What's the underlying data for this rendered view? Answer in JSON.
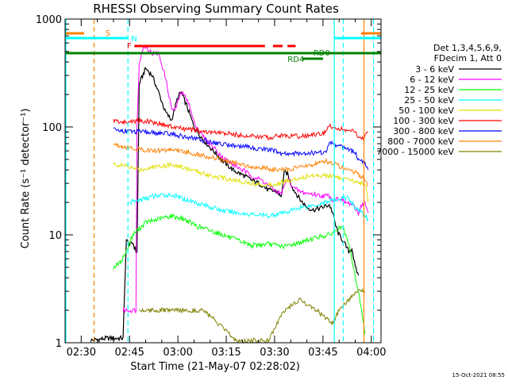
{
  "chart_data": {
    "type": "line",
    "title": "RHESSI Observing Summary Count Rates",
    "xlabel": "Start Time (21-May-07 02:28:02)",
    "ylabel": "Count Rate (s⁻¹ detector⁻¹)",
    "y_scale": "log",
    "ylim": [
      1,
      1000
    ],
    "xlim_minutes": [
      -3,
      95
    ],
    "x_ticks": [
      "02:30",
      "02:45",
      "03:00",
      "03:15",
      "03:30",
      "03:45",
      "04:00"
    ],
    "y_ticks": [
      "1",
      "10",
      "100",
      "1000"
    ],
    "legend": {
      "placement": "right",
      "header": [
        "Det 1,3,4,5,6,9,",
        "FDecim 1, Att 0"
      ],
      "entries": [
        {
          "label": "3 - 6 keV",
          "color": "#000000"
        },
        {
          "label": "6 - 12 keV",
          "color": "#ff00ff"
        },
        {
          "label": "12 - 25 keV",
          "color": "#00ff00"
        },
        {
          "label": "25 - 50 keV",
          "color": "#00ffff"
        },
        {
          "label": "50 - 100 keV",
          "color": "#e0e000"
        },
        {
          "label": "100 - 300 keV",
          "color": "#ff0000"
        },
        {
          "label": "300 - 800 keV",
          "color": "#0000ff"
        },
        {
          "label": "800 - 7000 keV",
          "color": "#ff8000"
        },
        {
          "label": "7000 - 15000 keV",
          "color": "#808000"
        }
      ]
    },
    "flags": [
      {
        "label": "S",
        "color": "#ff8000"
      },
      {
        "label": "N",
        "color": "#00ffff"
      },
      {
        "label": "F",
        "color": "#ff0000"
      },
      {
        "label": "RD4",
        "color": "#008000"
      },
      {
        "label": "RD0",
        "color": "#008000"
      }
    ],
    "series": [
      {
        "name": "3 - 6 keV",
        "points": [
          [
            5,
            1.05
          ],
          [
            10,
            1.1
          ],
          [
            12,
            1.1
          ],
          [
            15,
            1.1
          ],
          [
            16,
            9
          ],
          [
            17,
            8
          ],
          [
            18,
            8.5
          ],
          [
            19,
            7
          ],
          [
            19.3,
            7
          ],
          [
            20,
            250
          ],
          [
            22,
            350
          ],
          [
            24,
            300
          ],
          [
            26,
            210
          ],
          [
            28,
            140
          ],
          [
            30,
            115
          ],
          [
            32,
            190
          ],
          [
            33,
            210
          ],
          [
            35,
            150
          ],
          [
            37,
            100
          ],
          [
            40,
            75
          ],
          [
            43,
            60
          ],
          [
            46,
            48
          ],
          [
            49,
            40
          ],
          [
            52,
            36
          ],
          [
            55,
            32
          ],
          [
            58,
            29
          ],
          [
            60,
            26
          ],
          [
            63,
            25
          ],
          [
            64,
            22
          ],
          [
            65,
            38
          ],
          [
            66,
            37
          ],
          [
            67,
            30
          ],
          [
            68,
            26
          ],
          [
            70,
            21
          ],
          [
            72,
            18
          ],
          [
            74,
            17
          ],
          [
            77,
            18
          ],
          [
            79,
            19
          ],
          [
            80,
            16
          ],
          [
            81,
            12
          ],
          [
            82,
            10
          ],
          [
            83,
            9
          ],
          [
            84,
            8
          ],
          [
            85,
            7
          ],
          [
            86,
            7.5
          ],
          [
            87,
            5
          ],
          [
            88,
            4.2
          ]
        ]
      },
      {
        "name": "6 - 12 keV",
        "points": [
          [
            15,
            2
          ],
          [
            18,
            2
          ],
          [
            19,
            2
          ],
          [
            19.3,
            100
          ],
          [
            20,
            400
          ],
          [
            21,
            520
          ],
          [
            22,
            560
          ],
          [
            24,
            480
          ],
          [
            26,
            480
          ],
          [
            28,
            300
          ],
          [
            30,
            150
          ],
          [
            31,
            140
          ],
          [
            33,
            210
          ],
          [
            35,
            180
          ],
          [
            37,
            110
          ],
          [
            40,
            80
          ],
          [
            43,
            65
          ],
          [
            46,
            52
          ],
          [
            49,
            45
          ],
          [
            52,
            40
          ],
          [
            55,
            35
          ],
          [
            58,
            32
          ],
          [
            60,
            29
          ],
          [
            62,
            26
          ],
          [
            64,
            24
          ],
          [
            65,
            28
          ],
          [
            66,
            33
          ],
          [
            67,
            30
          ],
          [
            68,
            27
          ],
          [
            70,
            25
          ],
          [
            73,
            24
          ],
          [
            77,
            23
          ],
          [
            79,
            23
          ],
          [
            80,
            21
          ],
          [
            82,
            22
          ],
          [
            84,
            20
          ],
          [
            86,
            19
          ],
          [
            88,
            16
          ],
          [
            89,
            19
          ],
          [
            90,
            20
          ],
          [
            91,
            16
          ]
        ]
      },
      {
        "name": "12 - 25 keV",
        "points": [
          [
            12,
            5
          ],
          [
            14,
            5.5
          ],
          [
            16,
            7
          ],
          [
            18,
            10
          ],
          [
            22,
            13
          ],
          [
            26,
            14
          ],
          [
            30,
            15
          ],
          [
            34,
            14
          ],
          [
            38,
            12
          ],
          [
            42,
            11
          ],
          [
            46,
            10
          ],
          [
            50,
            9
          ],
          [
            55,
            8
          ],
          [
            60,
            8.2
          ],
          [
            65,
            7.8
          ],
          [
            70,
            8.5
          ],
          [
            75,
            9.5
          ],
          [
            79,
            10
          ],
          [
            81,
            11
          ],
          [
            83,
            12
          ],
          [
            85,
            8
          ],
          [
            86,
            6
          ],
          [
            87,
            4
          ],
          [
            88,
            3
          ],
          [
            89,
            2
          ],
          [
            90,
            1.2
          ]
        ]
      },
      {
        "name": "25 - 50 keV",
        "points": [
          [
            17,
            20
          ],
          [
            20,
            21
          ],
          [
            25,
            23
          ],
          [
            30,
            23.5
          ],
          [
            35,
            21
          ],
          [
            40,
            19
          ],
          [
            45,
            17
          ],
          [
            50,
            16
          ],
          [
            55,
            15.5
          ],
          [
            60,
            15
          ],
          [
            65,
            16
          ],
          [
            70,
            18
          ],
          [
            75,
            19
          ],
          [
            80,
            21
          ],
          [
            85,
            22
          ],
          [
            87,
            18
          ],
          [
            89,
            16
          ],
          [
            91,
            14
          ]
        ]
      },
      {
        "name": "50 - 100 keV",
        "points": [
          [
            12,
            45
          ],
          [
            15,
            44
          ],
          [
            20,
            40
          ],
          [
            25,
            43
          ],
          [
            30,
            45
          ],
          [
            35,
            41
          ],
          [
            40,
            37
          ],
          [
            45,
            34
          ],
          [
            50,
            32
          ],
          [
            55,
            30
          ],
          [
            60,
            29
          ],
          [
            65,
            31
          ],
          [
            70,
            34
          ],
          [
            75,
            36
          ],
          [
            80,
            35
          ],
          [
            85,
            32
          ],
          [
            88,
            31
          ],
          [
            90,
            30
          ],
          [
            91,
            20
          ]
        ]
      },
      {
        "name": "100 - 300 keV",
        "points": [
          [
            12,
            115
          ],
          [
            15,
            110
          ],
          [
            20,
            115
          ],
          [
            25,
            110
          ],
          [
            30,
            100
          ],
          [
            35,
            95
          ],
          [
            40,
            90
          ],
          [
            45,
            88
          ],
          [
            50,
            85
          ],
          [
            55,
            82
          ],
          [
            60,
            80
          ],
          [
            62,
            80
          ],
          [
            63,
            85
          ],
          [
            64,
            83
          ],
          [
            70,
            82
          ],
          [
            75,
            85
          ],
          [
            78,
            88
          ],
          [
            79,
            105
          ],
          [
            80,
            100
          ],
          [
            83,
            95
          ],
          [
            87,
            90
          ],
          [
            88,
            78
          ],
          [
            90,
            80
          ],
          [
            91,
            90
          ]
        ]
      },
      {
        "name": "300 - 800 keV",
        "points": [
          [
            12,
            95
          ],
          [
            15,
            92
          ],
          [
            20,
            90
          ],
          [
            25,
            88
          ],
          [
            30,
            86
          ],
          [
            35,
            80
          ],
          [
            40,
            75
          ],
          [
            45,
            70
          ],
          [
            50,
            67
          ],
          [
            55,
            64
          ],
          [
            60,
            62
          ],
          [
            62,
            60
          ],
          [
            63,
            58
          ],
          [
            64,
            56
          ],
          [
            70,
            57
          ],
          [
            75,
            58
          ],
          [
            78,
            58
          ],
          [
            79,
            72
          ],
          [
            80,
            70
          ],
          [
            83,
            65
          ],
          [
            87,
            58
          ],
          [
            88,
            50
          ],
          [
            90,
            46
          ],
          [
            91,
            40
          ]
        ]
      },
      {
        "name": "800 - 7000 keV",
        "points": [
          [
            12,
            70
          ],
          [
            15,
            66
          ],
          [
            20,
            62
          ],
          [
            25,
            60
          ],
          [
            30,
            62
          ],
          [
            35,
            58
          ],
          [
            40,
            54
          ],
          [
            45,
            50
          ],
          [
            50,
            46
          ],
          [
            55,
            43
          ],
          [
            60,
            41
          ],
          [
            62,
            40
          ],
          [
            64,
            40
          ],
          [
            70,
            42
          ],
          [
            75,
            46
          ],
          [
            78,
            48
          ],
          [
            80,
            46
          ],
          [
            83,
            42
          ],
          [
            87,
            38
          ],
          [
            88,
            36
          ],
          [
            90,
            33
          ],
          [
            91,
            28
          ]
        ]
      },
      {
        "name": "7000 - 15000 keV",
        "points": [
          [
            20,
            2
          ],
          [
            30,
            2
          ],
          [
            40,
            2
          ],
          [
            50,
            1.05
          ],
          [
            60,
            1.05
          ],
          [
            65,
            2
          ],
          [
            70,
            2.5
          ],
          [
            75,
            2
          ],
          [
            80,
            1.5
          ],
          [
            82,
            2
          ],
          [
            85,
            2.5
          ],
          [
            88,
            3
          ],
          [
            90,
            3
          ]
        ]
      }
    ]
  },
  "timestamp": "15-Oct-2021 08:55"
}
